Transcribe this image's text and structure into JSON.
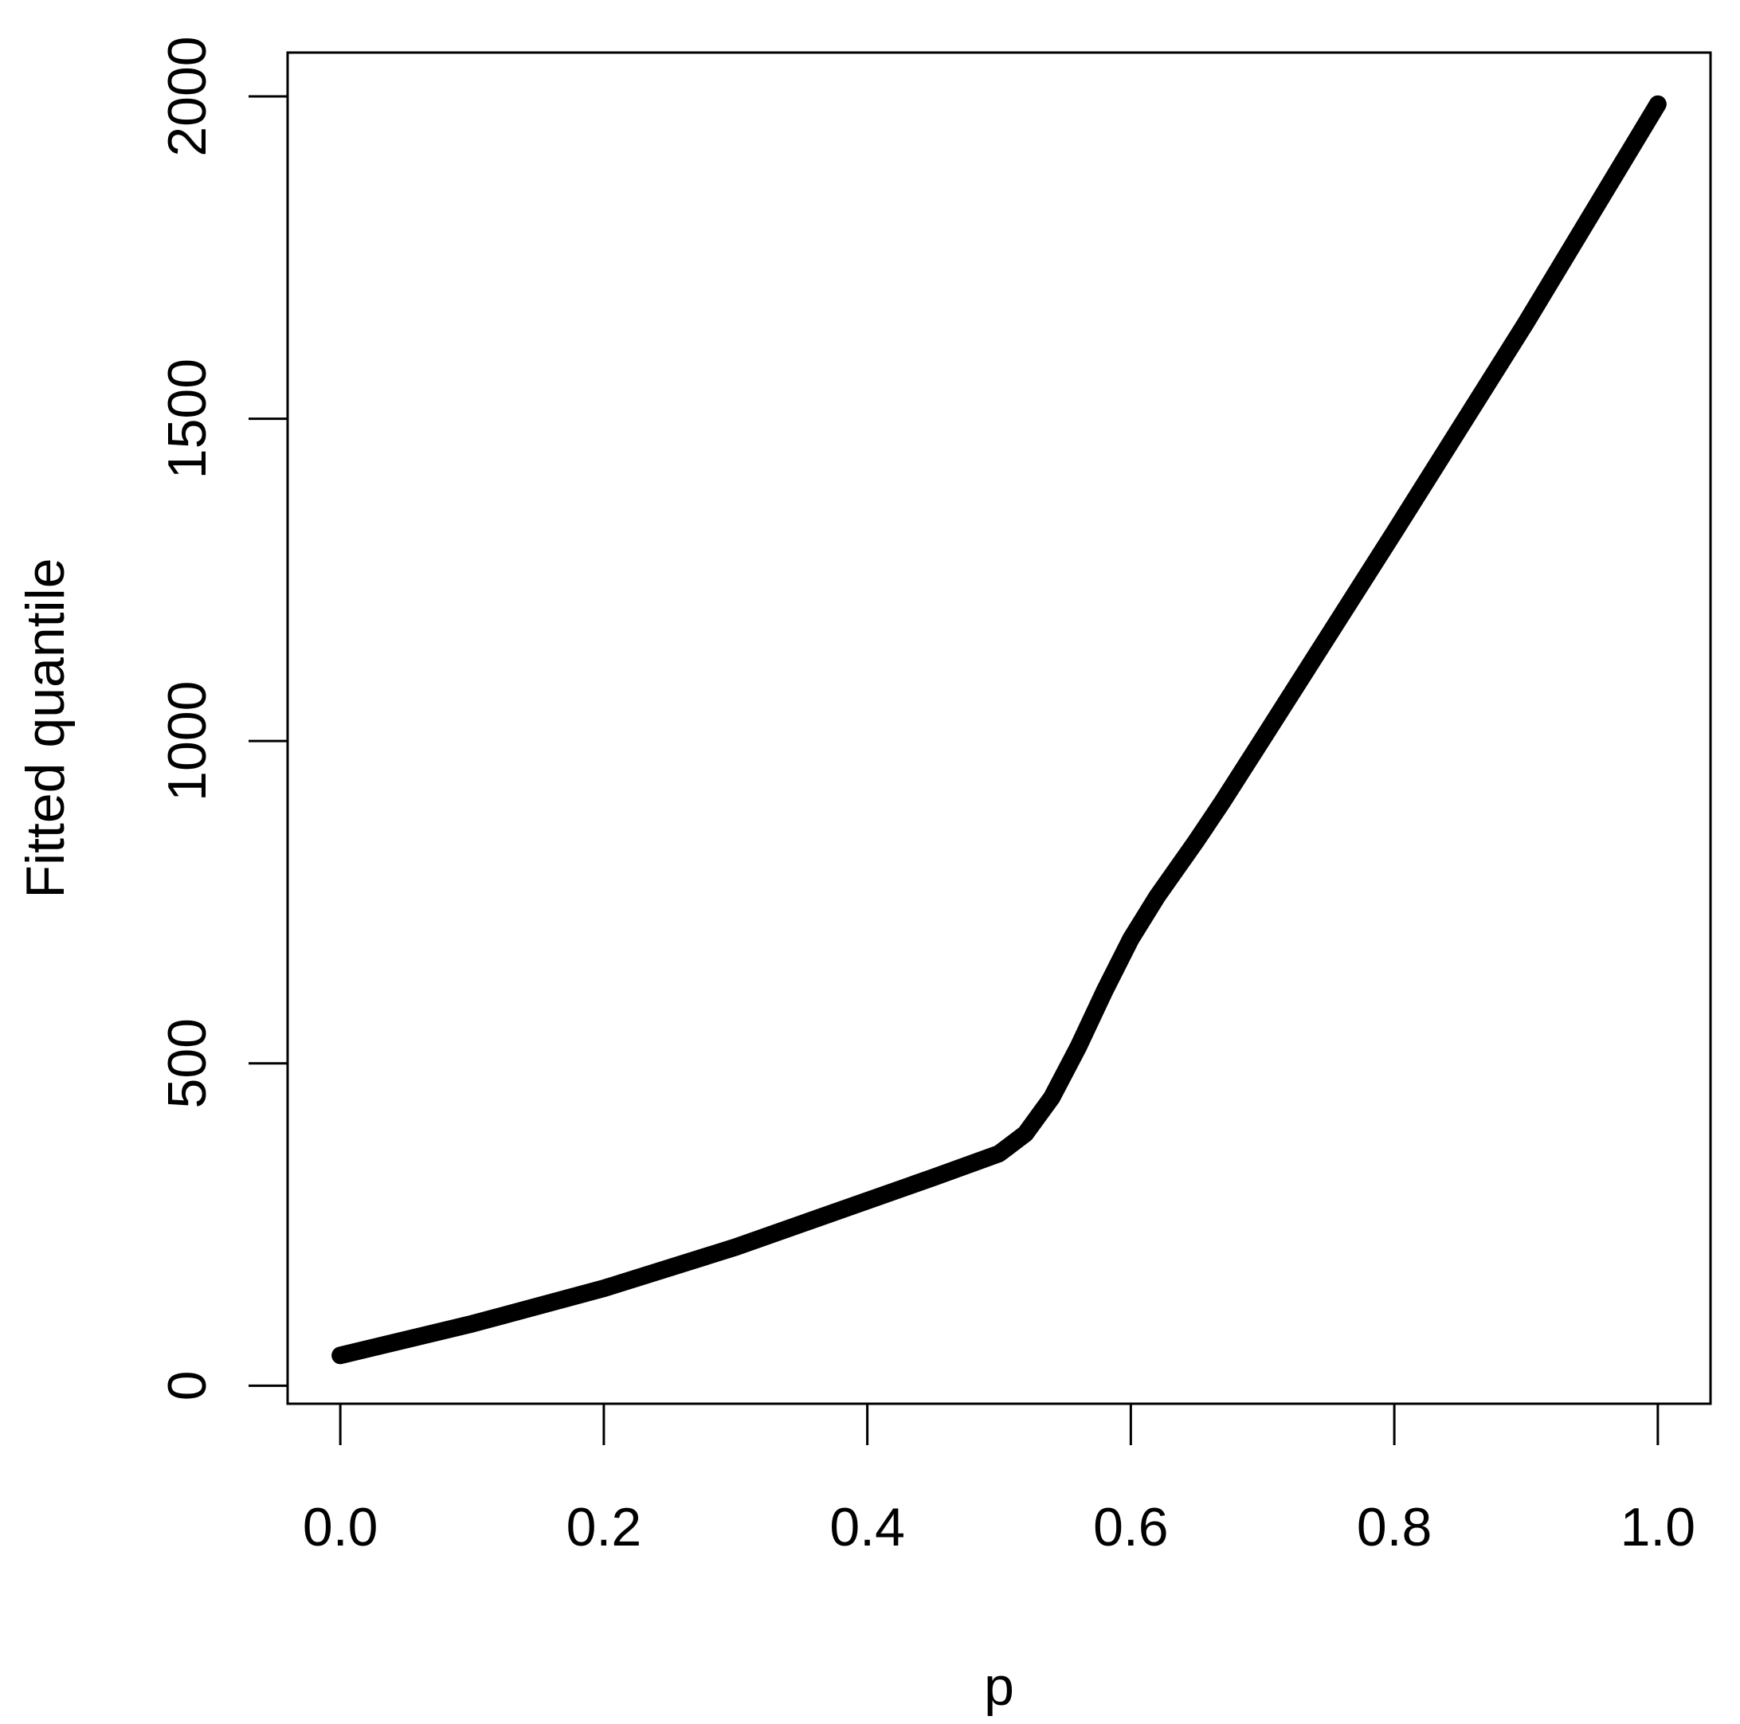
{
  "chart_data": {
    "type": "line",
    "xlabel": "p",
    "ylabel": "Fitted quantile",
    "x": [
      0,
      0.1,
      0.2,
      0.3,
      0.4,
      0.45,
      0.5,
      0.52,
      0.54,
      0.56,
      0.58,
      0.6,
      0.62,
      0.65,
      0.67,
      0.7,
      0.8,
      0.9,
      1.0
    ],
    "series": [
      {
        "color": "#000000",
        "values": [
          47,
          96,
          151,
          215,
          287,
          323,
          360,
          391,
          447,
          525,
          612,
          693,
          759,
          846,
          907,
          1003,
          1324,
          1649,
          1988
        ]
      }
    ],
    "xlim": [
      -0.04,
      1.04
    ],
    "ylim": [
      -28,
      2068
    ],
    "xticks": [
      {
        "value": 0,
        "label": "0.0"
      },
      0.2,
      0.4,
      0.6,
      0.8,
      {
        "value": 1,
        "label": "1.0"
      }
    ],
    "yticks": [
      0,
      500,
      1000,
      1500,
      2000
    ]
  }
}
